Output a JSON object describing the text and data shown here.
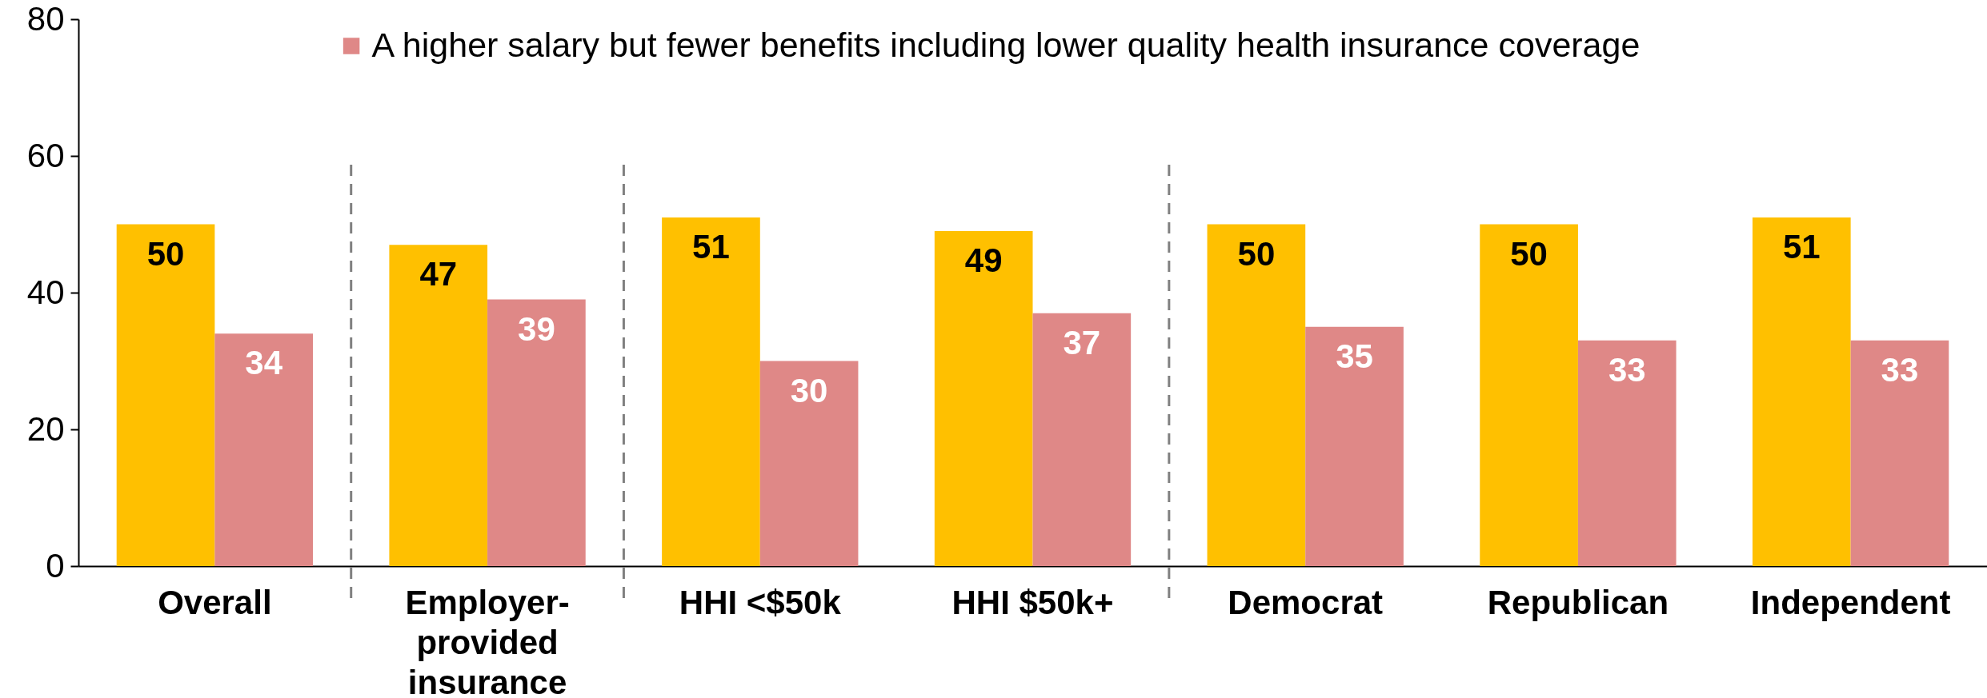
{
  "chart_data": {
    "type": "bar",
    "categories": [
      "Overall",
      "Employer-provided insurance",
      "HHI <$50k",
      "HHI $50k+",
      "Democrat",
      "Republican",
      "Independent"
    ],
    "series": [
      {
        "color": "#ffc000",
        "values": [
          50,
          47,
          51,
          49,
          50,
          50,
          51
        ]
      },
      {
        "name": "A higher salary but fewer benefits including lower quality health insurance coverage",
        "color": "#df8887",
        "values": [
          34,
          39,
          30,
          37,
          35,
          33,
          33
        ]
      }
    ],
    "ylim": [
      0,
      80
    ],
    "yticks": [
      0,
      20,
      40,
      60,
      80
    ],
    "data_labels": true,
    "legend": "top",
    "grid": false
  }
}
